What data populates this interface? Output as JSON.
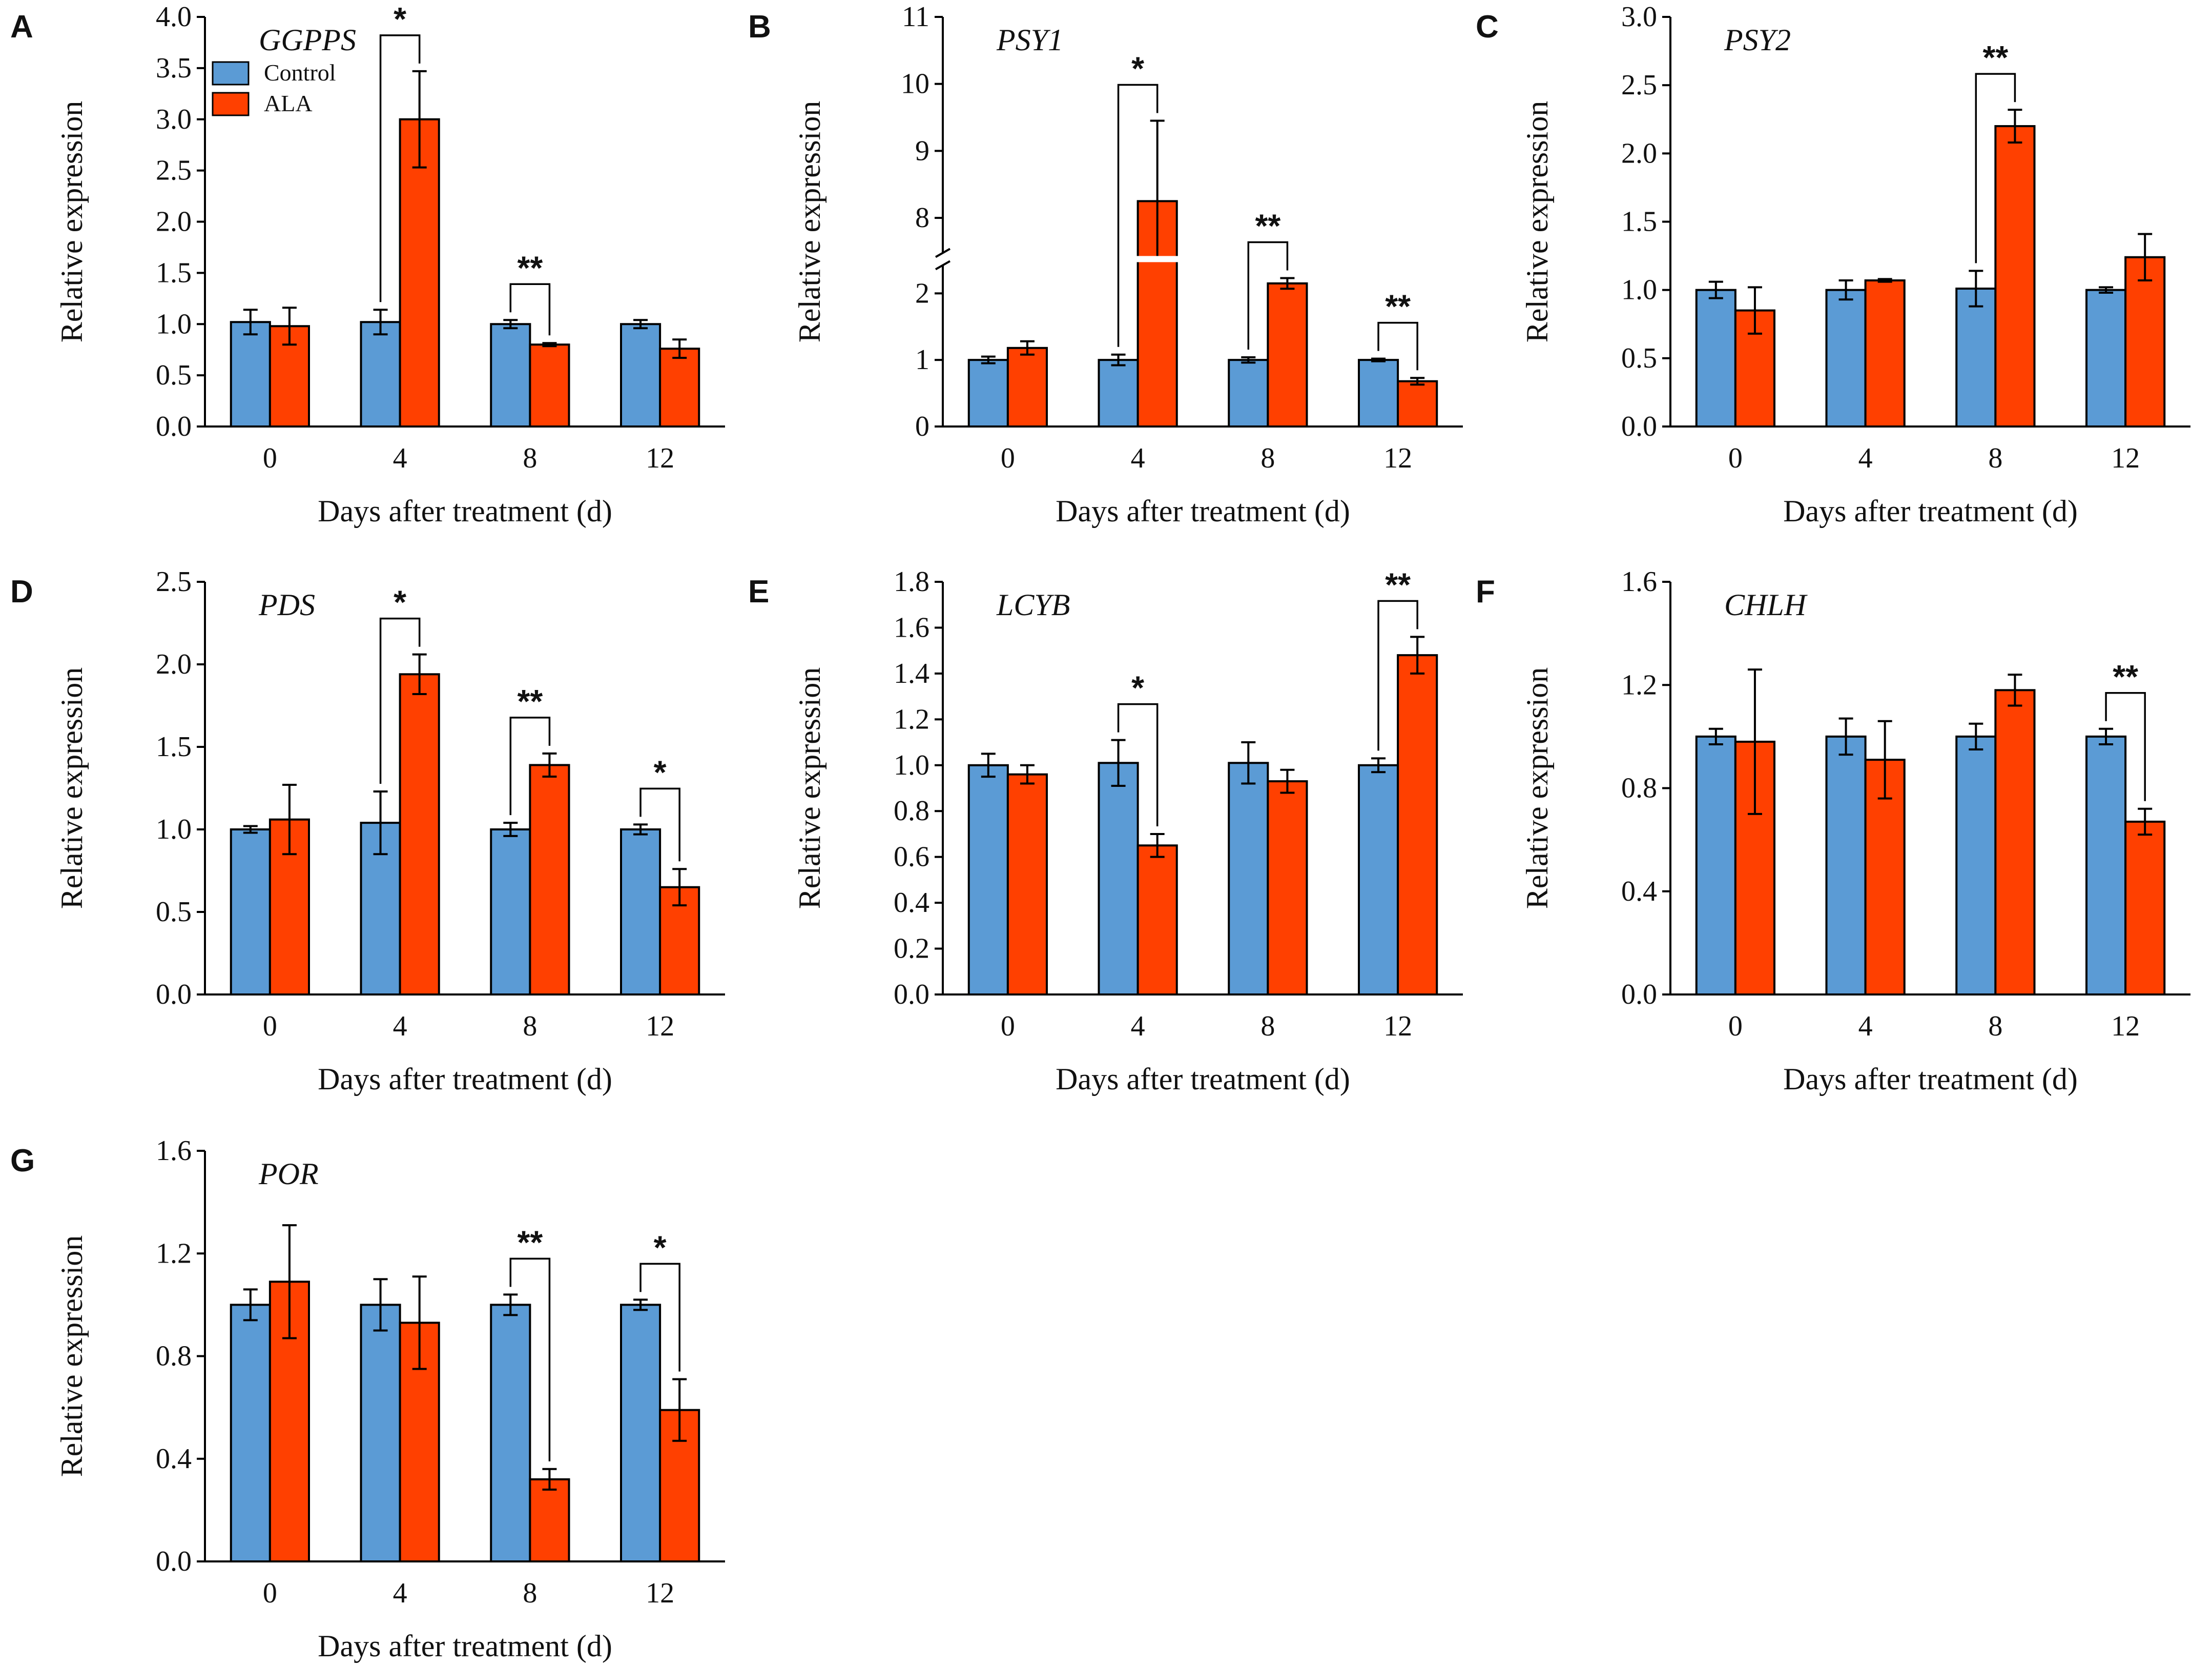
{
  "figure": {
    "colors": {
      "control": "#5B9BD5",
      "ala": "#FF4000",
      "axis": "#000000"
    }
  },
  "chart_data": [
    {
      "panel": "A",
      "type": "bar",
      "title": "GGPPS",
      "xlabel": "Days after treatment (d)",
      "ylabel": "Relative expression",
      "categories": [
        "0",
        "4",
        "8",
        "12"
      ],
      "ylim": [
        0,
        4.0
      ],
      "yticks": [
        "0.0",
        "0.5",
        "1.0",
        "1.5",
        "2.0",
        "2.5",
        "3.0",
        "3.5",
        "4.0"
      ],
      "legend": [
        "Control",
        "ALA"
      ],
      "series": [
        {
          "name": "Control",
          "values": [
            1.02,
            1.02,
            1.0,
            1.0
          ],
          "errors": [
            0.12,
            0.12,
            0.04,
            0.04
          ]
        },
        {
          "name": "ALA",
          "values": [
            0.98,
            3.0,
            0.8,
            0.76
          ],
          "errors": [
            0.18,
            0.47,
            0.015,
            0.09
          ]
        }
      ],
      "significance": [
        {
          "category": "4",
          "label": "*"
        },
        {
          "category": "8",
          "label": "**"
        }
      ]
    },
    {
      "panel": "B",
      "type": "bar",
      "title": "PSY1",
      "xlabel": "Days after treatment (d)",
      "ylabel": "Relative expression",
      "categories": [
        "0",
        "4",
        "8",
        "12"
      ],
      "ylim": [
        0,
        11
      ],
      "axis_break": [
        2.4,
        7.5
      ],
      "yticks": [
        "0",
        "1",
        "2",
        "8",
        "9",
        "10",
        "11"
      ],
      "series": [
        {
          "name": "Control",
          "values": [
            1.0,
            1.0,
            1.0,
            1.0
          ],
          "errors": [
            0.05,
            0.08,
            0.04,
            0.02
          ]
        },
        {
          "name": "ALA",
          "values": [
            1.18,
            8.25,
            2.15,
            0.68
          ],
          "errors": [
            0.1,
            1.2,
            0.08,
            0.05
          ]
        }
      ],
      "significance": [
        {
          "category": "4",
          "label": "*"
        },
        {
          "category": "8",
          "label": "**"
        },
        {
          "category": "12",
          "label": "**"
        }
      ]
    },
    {
      "panel": "C",
      "type": "bar",
      "title": "PSY2",
      "xlabel": "Days after treatment (d)",
      "ylabel": "Relative expression",
      "categories": [
        "0",
        "4",
        "8",
        "12"
      ],
      "ylim": [
        0,
        3.0
      ],
      "yticks": [
        "0.0",
        "0.5",
        "1.0",
        "1.5",
        "2.0",
        "2.5",
        "3.0"
      ],
      "series": [
        {
          "name": "Control",
          "values": [
            1.0,
            1.0,
            1.01,
            1.0
          ],
          "errors": [
            0.06,
            0.07,
            0.13,
            0.02
          ]
        },
        {
          "name": "ALA",
          "values": [
            0.85,
            1.07,
            2.2,
            1.24
          ],
          "errors": [
            0.17,
            0.01,
            0.12,
            0.17
          ]
        }
      ],
      "significance": [
        {
          "category": "8",
          "label": "**"
        }
      ]
    },
    {
      "panel": "D",
      "type": "bar",
      "title": "PDS",
      "xlabel": "Days after treatment (d)",
      "ylabel": "Relative expression",
      "categories": [
        "0",
        "4",
        "8",
        "12"
      ],
      "ylim": [
        0,
        2.5
      ],
      "yticks": [
        "0.0",
        "0.5",
        "1.0",
        "1.5",
        "2.0",
        "2.5"
      ],
      "series": [
        {
          "name": "Control",
          "values": [
            1.0,
            1.04,
            1.0,
            1.0
          ],
          "errors": [
            0.02,
            0.19,
            0.04,
            0.03
          ]
        },
        {
          "name": "ALA",
          "values": [
            1.06,
            1.94,
            1.39,
            0.65
          ],
          "errors": [
            0.21,
            0.12,
            0.07,
            0.11
          ]
        }
      ],
      "significance": [
        {
          "category": "4",
          "label": "*"
        },
        {
          "category": "8",
          "label": "**"
        },
        {
          "category": "12",
          "label": "*"
        }
      ]
    },
    {
      "panel": "E",
      "type": "bar",
      "title": "LCYB",
      "xlabel": "Days after treatment (d)",
      "ylabel": "Relative expression",
      "categories": [
        "0",
        "4",
        "8",
        "12"
      ],
      "ylim": [
        0,
        1.8
      ],
      "yticks": [
        "0.0",
        "0.2",
        "0.4",
        "0.6",
        "0.8",
        "1.0",
        "1.2",
        "1.4",
        "1.6",
        "1.8"
      ],
      "series": [
        {
          "name": "Control",
          "values": [
            1.0,
            1.01,
            1.01,
            1.0
          ],
          "errors": [
            0.05,
            0.1,
            0.09,
            0.03
          ]
        },
        {
          "name": "ALA",
          "values": [
            0.96,
            0.65,
            0.93,
            1.48
          ],
          "errors": [
            0.04,
            0.05,
            0.05,
            0.08
          ]
        }
      ],
      "significance": [
        {
          "category": "4",
          "label": "*"
        },
        {
          "category": "12",
          "label": "**"
        }
      ]
    },
    {
      "panel": "F",
      "type": "bar",
      "title": "CHLH",
      "xlabel": "Days after treatment (d)",
      "ylabel": "Relative expression",
      "categories": [
        "0",
        "4",
        "8",
        "12"
      ],
      "ylim": [
        0,
        1.6
      ],
      "yticks": [
        "0.0",
        "0.4",
        "0.8",
        "1.2",
        "1.6"
      ],
      "series": [
        {
          "name": "Control",
          "values": [
            1.0,
            1.0,
            1.0,
            1.0
          ],
          "errors": [
            0.03,
            0.07,
            0.05,
            0.03
          ]
        },
        {
          "name": "ALA",
          "values": [
            0.98,
            0.91,
            1.18,
            0.67
          ],
          "errors": [
            0.28,
            0.15,
            0.06,
            0.05
          ]
        }
      ],
      "significance": [
        {
          "category": "12",
          "label": "**"
        }
      ]
    },
    {
      "panel": "G",
      "type": "bar",
      "title": "POR",
      "xlabel": "Days after treatment (d)",
      "ylabel": "Relative expression",
      "categories": [
        "0",
        "4",
        "8",
        "12"
      ],
      "ylim": [
        0,
        1.6
      ],
      "yticks": [
        "0.0",
        "0.4",
        "0.8",
        "1.2",
        "1.6"
      ],
      "series": [
        {
          "name": "Control",
          "values": [
            1.0,
            1.0,
            1.0,
            1.0
          ],
          "errors": [
            0.06,
            0.1,
            0.04,
            0.02
          ]
        },
        {
          "name": "ALA",
          "values": [
            1.09,
            0.93,
            0.32,
            0.59
          ],
          "errors": [
            0.22,
            0.18,
            0.04,
            0.12
          ]
        }
      ],
      "significance": [
        {
          "category": "8",
          "label": "**"
        },
        {
          "category": "12",
          "label": "*"
        }
      ]
    }
  ]
}
